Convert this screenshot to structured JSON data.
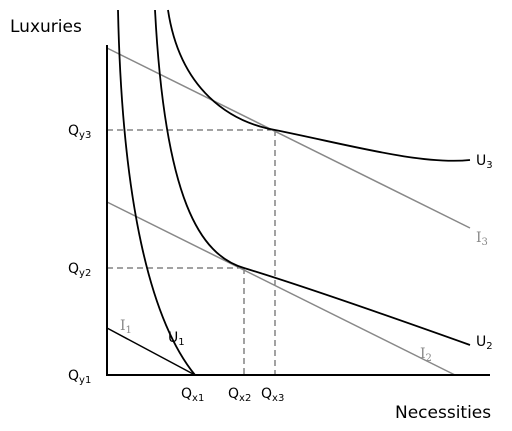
{
  "axes": {
    "y_label": "Luxuries",
    "x_label": "Necessities"
  },
  "y_ticks": [
    {
      "base": "Q",
      "sub": "y3"
    },
    {
      "base": "Q",
      "sub": "y2"
    },
    {
      "base": "Q",
      "sub": "y1"
    }
  ],
  "x_ticks": [
    {
      "base": "Q",
      "sub": "x1"
    },
    {
      "base": "Q",
      "sub": "x2"
    },
    {
      "base": "Q",
      "sub": "x3"
    }
  ],
  "indifference_curves": [
    {
      "base": "U",
      "sub": "1"
    },
    {
      "base": "U",
      "sub": "2"
    },
    {
      "base": "U",
      "sub": "3"
    }
  ],
  "budget_lines": [
    {
      "base": "I",
      "sub": "1"
    },
    {
      "base": "I",
      "sub": "2"
    },
    {
      "base": "I",
      "sub": "3"
    }
  ]
}
